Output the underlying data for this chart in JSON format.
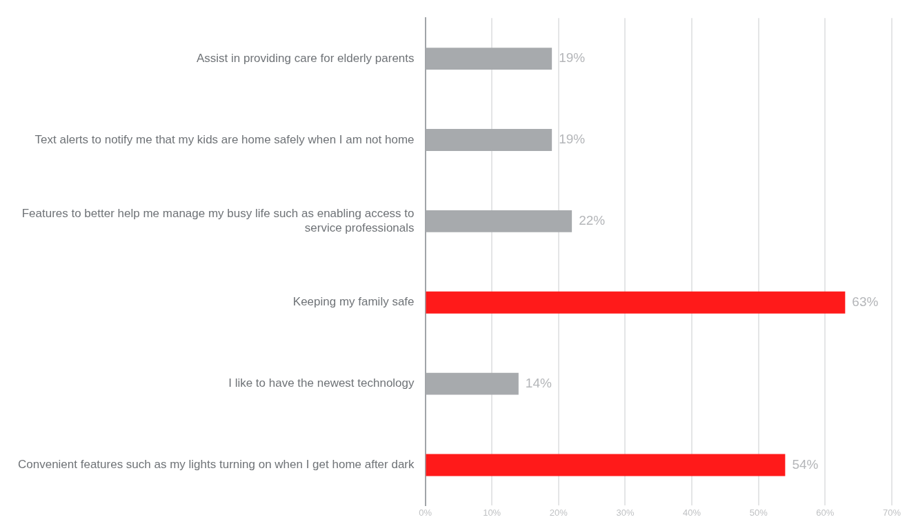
{
  "chart_data": {
    "type": "bar",
    "orientation": "horizontal",
    "categories": [
      "Assist in providing care for elderly parents",
      "Text alerts to notify me that my kids are home safely when I am not home",
      "Features to better help me manage my busy life such as enabling access to service professionals",
      "Keeping my family safe",
      "I like to have the newest technology",
      "Convenient features such as my lights turning on when I get home after dark"
    ],
    "values": [
      19,
      19,
      22,
      63,
      14,
      54
    ],
    "value_labels": [
      "19%",
      "19%",
      "22%",
      "63%",
      "14%",
      "54%"
    ],
    "colors": [
      "#a7aaad",
      "#a7aaad",
      "#a7aaad",
      "#ff1a1a",
      "#a7aaad",
      "#ff1a1a"
    ],
    "xlim": [
      0,
      70
    ],
    "xticks": [
      {
        "value": 0,
        "label": "0%"
      },
      {
        "value": 10,
        "label": "10%"
      },
      {
        "value": 20,
        "label": "20%"
      },
      {
        "value": 30,
        "label": "30%"
      },
      {
        "value": 40,
        "label": "40%"
      },
      {
        "value": 50,
        "label": "50%"
      },
      {
        "value": 60,
        "label": "60%"
      },
      {
        "value": 70,
        "label": "70%"
      }
    ],
    "grid": "x",
    "legend": false
  }
}
